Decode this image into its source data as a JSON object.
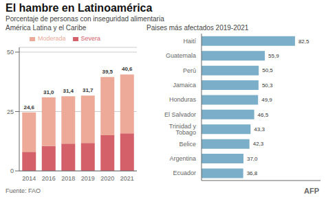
{
  "title": "El hambre en Latinoamérica",
  "subtitle": "Porcentaje de personas con inseguridad alimentaria",
  "source": "Fuente: FAO",
  "annotations": [
    "AFP"
  ],
  "chart_data": [
    {
      "type": "bar",
      "title": "América Latina y el Caribe",
      "stacked": true,
      "categories": [
        "2014",
        "2016",
        "2018",
        "2019",
        "2020",
        "2021"
      ],
      "series": [
        {
          "name": "Severa",
          "color": "#D4606A",
          "values": [
            8.0,
            10.5,
            11.5,
            11.8,
            15.0,
            15.8
          ]
        },
        {
          "name": "Moderada",
          "color": "#EDAA98",
          "values": [
            16.6,
            20.5,
            19.9,
            19.9,
            24.5,
            24.8
          ]
        }
      ],
      "totals": [
        24.6,
        31.0,
        31.4,
        31.7,
        39.5,
        40.6
      ],
      "total_labels": [
        "24,6",
        "31,0",
        "31,4",
        "31,7",
        "39,5",
        "40,6"
      ],
      "ylim": [
        0,
        52
      ],
      "yticks": [
        0,
        25,
        50
      ],
      "grid": true,
      "legend": "top"
    },
    {
      "type": "bar",
      "orientation": "horizontal",
      "title": "Paises más afectados 2019-2021",
      "categories": [
        "Haití",
        "Guatemala",
        "Perú",
        "Jamaica",
        "Honduras",
        "El Salvador",
        "Trinidad y Tobago",
        "Belice",
        "Argentina",
        "Ecuador"
      ],
      "values": [
        82.5,
        55.9,
        50.5,
        50.3,
        49.9,
        46.5,
        43.3,
        42.3,
        37.0,
        36.8
      ],
      "value_labels": [
        "82,5",
        "55,9",
        "50,5",
        "50,3",
        "49,9",
        "46,5",
        "43,3",
        "42,3",
        "37,0",
        "36,8"
      ],
      "data_labels": true,
      "color": "#7BAEC8",
      "xlim": [
        0,
        105
      ],
      "xticks": [],
      "tick_labels": "y",
      "grid": false
    }
  ]
}
